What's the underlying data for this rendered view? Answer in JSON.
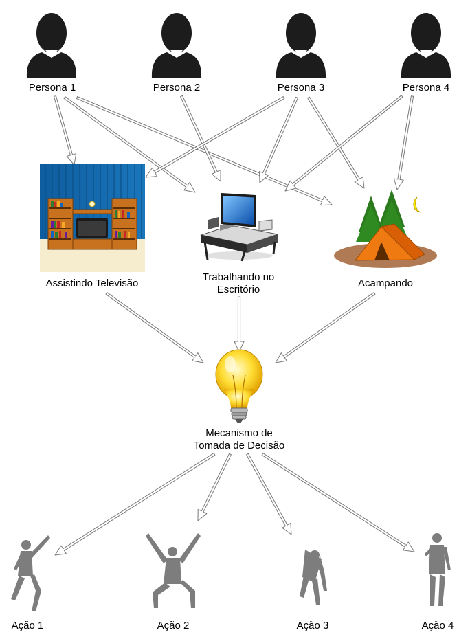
{
  "personas": [
    {
      "id": "p1",
      "label": "Persona 1",
      "icon": "person-silhouette-icon"
    },
    {
      "id": "p2",
      "label": "Persona 2",
      "icon": "person-silhouette-icon"
    },
    {
      "id": "p3",
      "label": "Persona 3",
      "icon": "person-silhouette-icon"
    },
    {
      "id": "p4",
      "label": "Persona 4",
      "icon": "person-silhouette-icon"
    }
  ],
  "contexts": [
    {
      "id": "tv",
      "label": "Assistindo Televisão",
      "icon": "tv-room-icon"
    },
    {
      "id": "office",
      "label_lines": [
        "Trabalhando no",
        "Escritório"
      ],
      "icon": "computer-desk-icon"
    },
    {
      "id": "camp",
      "label": "Acampando",
      "icon": "camping-tent-icon"
    }
  ],
  "decision": {
    "label_lines": [
      "Mecanismo de",
      "Tomada de Decisão"
    ],
    "icon": "light-bulb-icon"
  },
  "actions": [
    {
      "id": "a1",
      "label": "Ação 1",
      "icon": "dancer-pointing-icon"
    },
    {
      "id": "a2",
      "label": "Ação 2",
      "icon": "dancer-arms-up-icon"
    },
    {
      "id": "a3",
      "label": "Ação 3",
      "icon": "person-bending-icon"
    },
    {
      "id": "a4",
      "label": "Ação 4",
      "icon": "person-standing-icon"
    }
  ],
  "edges": [
    {
      "from": "p1",
      "to": "tv"
    },
    {
      "from": "p1",
      "to": "office"
    },
    {
      "from": "p1",
      "to": "camp"
    },
    {
      "from": "p2",
      "to": "office"
    },
    {
      "from": "p3",
      "to": "tv"
    },
    {
      "from": "p3",
      "to": "office"
    },
    {
      "from": "p3",
      "to": "camp"
    },
    {
      "from": "p4",
      "to": "office"
    },
    {
      "from": "p4",
      "to": "camp"
    },
    {
      "from": "tv",
      "to": "decision"
    },
    {
      "from": "office",
      "to": "decision"
    },
    {
      "from": "camp",
      "to": "decision"
    },
    {
      "from": "decision",
      "to": "a1"
    },
    {
      "from": "decision",
      "to": "a2"
    },
    {
      "from": "decision",
      "to": "a3"
    },
    {
      "from": "decision",
      "to": "a4"
    }
  ],
  "colors": {
    "arrow_fill": "#ffffff",
    "arrow_stroke": "#777777",
    "person": "#1c1c1c",
    "action_figure": "#7d7d7d"
  }
}
